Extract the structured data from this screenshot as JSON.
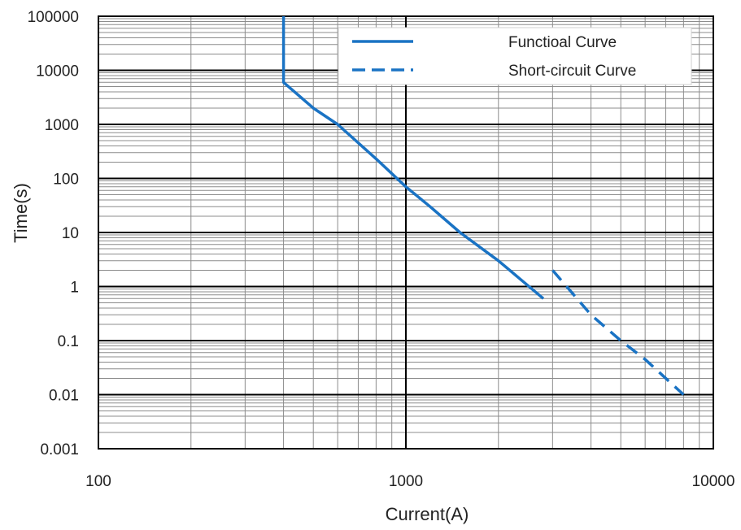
{
  "colors": {
    "series": "#1a73c4",
    "major_grid": "#000000",
    "minor_grid": "#8c8c8c",
    "background": "#ffffff"
  },
  "chart_data": {
    "type": "line",
    "xlabel": "Current(A)",
    "ylabel": "Time(s)",
    "x_scale": "log",
    "y_scale": "log",
    "xlim": [
      100,
      10000
    ],
    "ylim": [
      0.001,
      100000
    ],
    "x_ticks": [
      "100",
      "1000",
      "10000"
    ],
    "y_ticks": [
      "100000",
      "10000",
      "1000",
      "100",
      "10",
      "1",
      "0.1",
      "0.01",
      "0.001"
    ],
    "grid": true,
    "legend_position": "top-right",
    "series": [
      {
        "name": "Functioal Curve",
        "style": "solid",
        "x": [
          400,
          400,
          500,
          600,
          800,
          1000,
          1200,
          1500,
          2000,
          2800
        ],
        "y": [
          100000,
          6000,
          2000,
          1000,
          230,
          70,
          30,
          10,
          3,
          0.6
        ]
      },
      {
        "name": "Short-circuit Curve",
        "style": "dashed",
        "x": [
          3000,
          4000,
          5000,
          6000,
          8000
        ],
        "y": [
          2,
          0.3,
          0.1,
          0.045,
          0.01
        ]
      }
    ]
  }
}
